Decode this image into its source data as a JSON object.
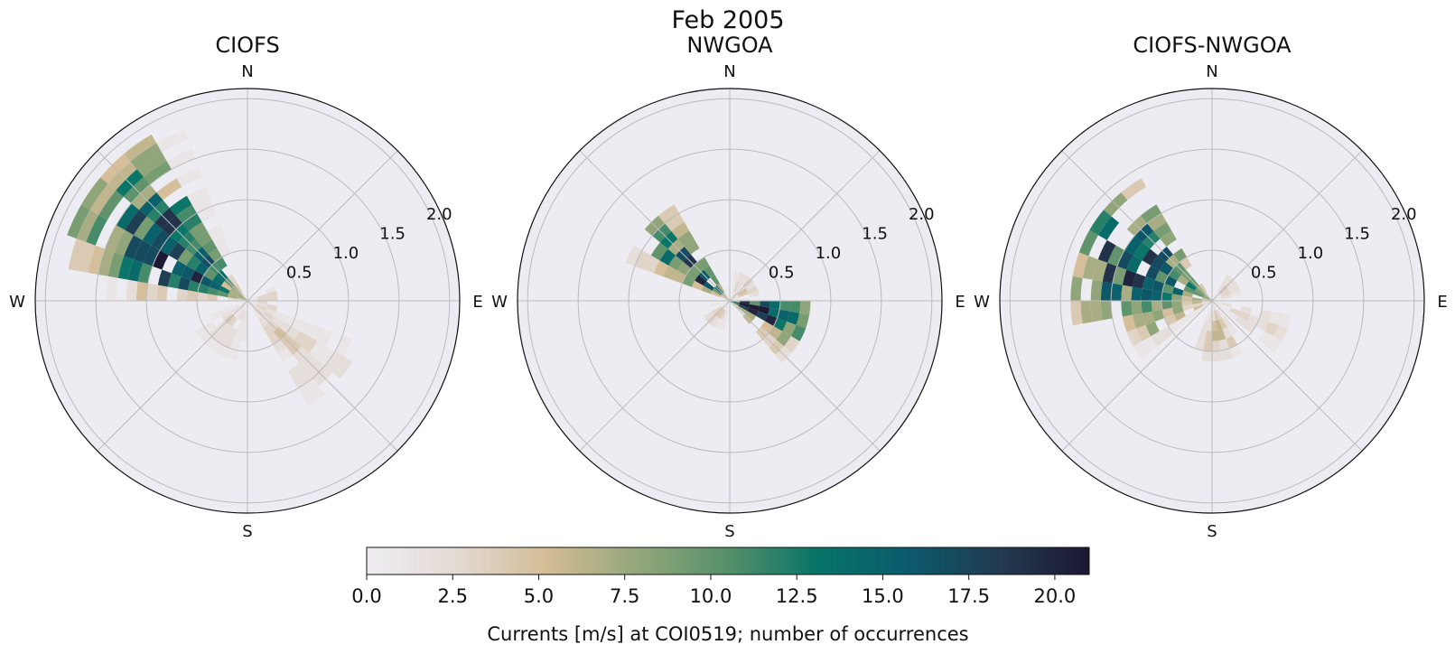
{
  "figure": {
    "title": "Feb 2005",
    "colorbar": {
      "label": "Currents [m/s] at COI0519; number of occurrences",
      "min": 0,
      "max": 21,
      "ticks": [
        "0.0",
        "2.5",
        "5.0",
        "7.5",
        "10.0",
        "12.5",
        "15.0",
        "17.5",
        "20.0"
      ],
      "tick_values": [
        0,
        2.5,
        5,
        7.5,
        10,
        12.5,
        15,
        17.5,
        20
      ],
      "colormap": [
        "#efedf3",
        "#e3d9d3",
        "#d4bc95",
        "#93a67a",
        "#55906a",
        "#077468",
        "#0b5a6c",
        "#223a50",
        "#1d1833"
      ]
    },
    "compass_labels": [
      "N",
      "E",
      "S",
      "W"
    ],
    "radial_labels": [
      "0.5",
      "1.0",
      "1.5",
      "2.0"
    ],
    "colors": {
      "axes_bg": "#edecf2",
      "grid": "#bbbbbb"
    }
  },
  "chart_data": [
    {
      "type": "polar-histogram",
      "title": "CIOFS",
      "r_max": 2.1,
      "r_ticks": [
        0.5,
        1.0,
        1.5,
        2.0
      ],
      "direction_bins": 36,
      "speed_bin_width": 0.1,
      "lobes": [
        {
          "dir": 302,
          "width": 48,
          "r_from": 0.05,
          "r_to": 1.95,
          "peak": 15.5,
          "peak_r": 0.95
        },
        {
          "dir": 282,
          "width": 26,
          "r_from": 0.05,
          "r_to": 1.35,
          "peak": 8.0,
          "peak_r": 0.9
        },
        {
          "dir": 128,
          "width": 34,
          "r_from": 0.05,
          "r_to": 1.2,
          "peak": 3.2,
          "peak_r": 0.5
        },
        {
          "dir": 90,
          "width": 60,
          "r_from": 0.05,
          "r_to": 0.35,
          "peak": 3.0,
          "peak_r": 0.2
        },
        {
          "dir": 210,
          "width": 60,
          "r_from": 0.05,
          "r_to": 0.55,
          "peak": 3.0,
          "peak_r": 0.25
        }
      ]
    },
    {
      "type": "polar-histogram",
      "title": "NWGOA",
      "r_max": 2.1,
      "r_ticks": [
        0.5,
        1.0,
        1.5,
        2.0
      ],
      "direction_bins": 36,
      "speed_bin_width": 0.1,
      "lobes": [
        {
          "dir": 305,
          "width": 30,
          "r_from": 0.05,
          "r_to": 1.05,
          "peak": 16.5,
          "peak_r": 0.3
        },
        {
          "dir": 100,
          "width": 26,
          "r_from": 0.05,
          "r_to": 0.8,
          "peak": 20.5,
          "peak_r": 0.22
        },
        {
          "dir": 120,
          "width": 20,
          "r_from": 0.05,
          "r_to": 0.8,
          "peak": 9.0,
          "peak_r": 0.35
        },
        {
          "dir": 45,
          "width": 70,
          "r_from": 0.05,
          "r_to": 0.3,
          "peak": 4.0,
          "peak_r": 0.15
        },
        {
          "dir": 220,
          "width": 60,
          "r_from": 0.05,
          "r_to": 0.3,
          "peak": 3.0,
          "peak_r": 0.15
        }
      ]
    },
    {
      "type": "polar-histogram",
      "title": "CIOFS-NWGOA",
      "r_max": 2.1,
      "r_ticks": [
        0.5,
        1.0,
        1.5,
        2.0
      ],
      "direction_bins": 36,
      "speed_bin_width": 0.1,
      "lobes": [
        {
          "dir": 290,
          "width": 70,
          "r_from": 0.05,
          "r_to": 1.45,
          "peak": 16.5,
          "peak_r": 0.8
        },
        {
          "dir": 245,
          "width": 24,
          "r_from": 0.05,
          "r_to": 0.95,
          "peak": 7.0,
          "peak_r": 0.5
        },
        {
          "dir": 110,
          "width": 32,
          "r_from": 0.05,
          "r_to": 0.85,
          "peak": 2.5,
          "peak_r": 0.4
        },
        {
          "dir": 165,
          "width": 50,
          "r_from": 0.05,
          "r_to": 0.55,
          "peak": 4.5,
          "peak_r": 0.3
        },
        {
          "dir": 50,
          "width": 50,
          "r_from": 0.05,
          "r_to": 0.3,
          "peak": 3.0,
          "peak_r": 0.15
        }
      ]
    }
  ]
}
